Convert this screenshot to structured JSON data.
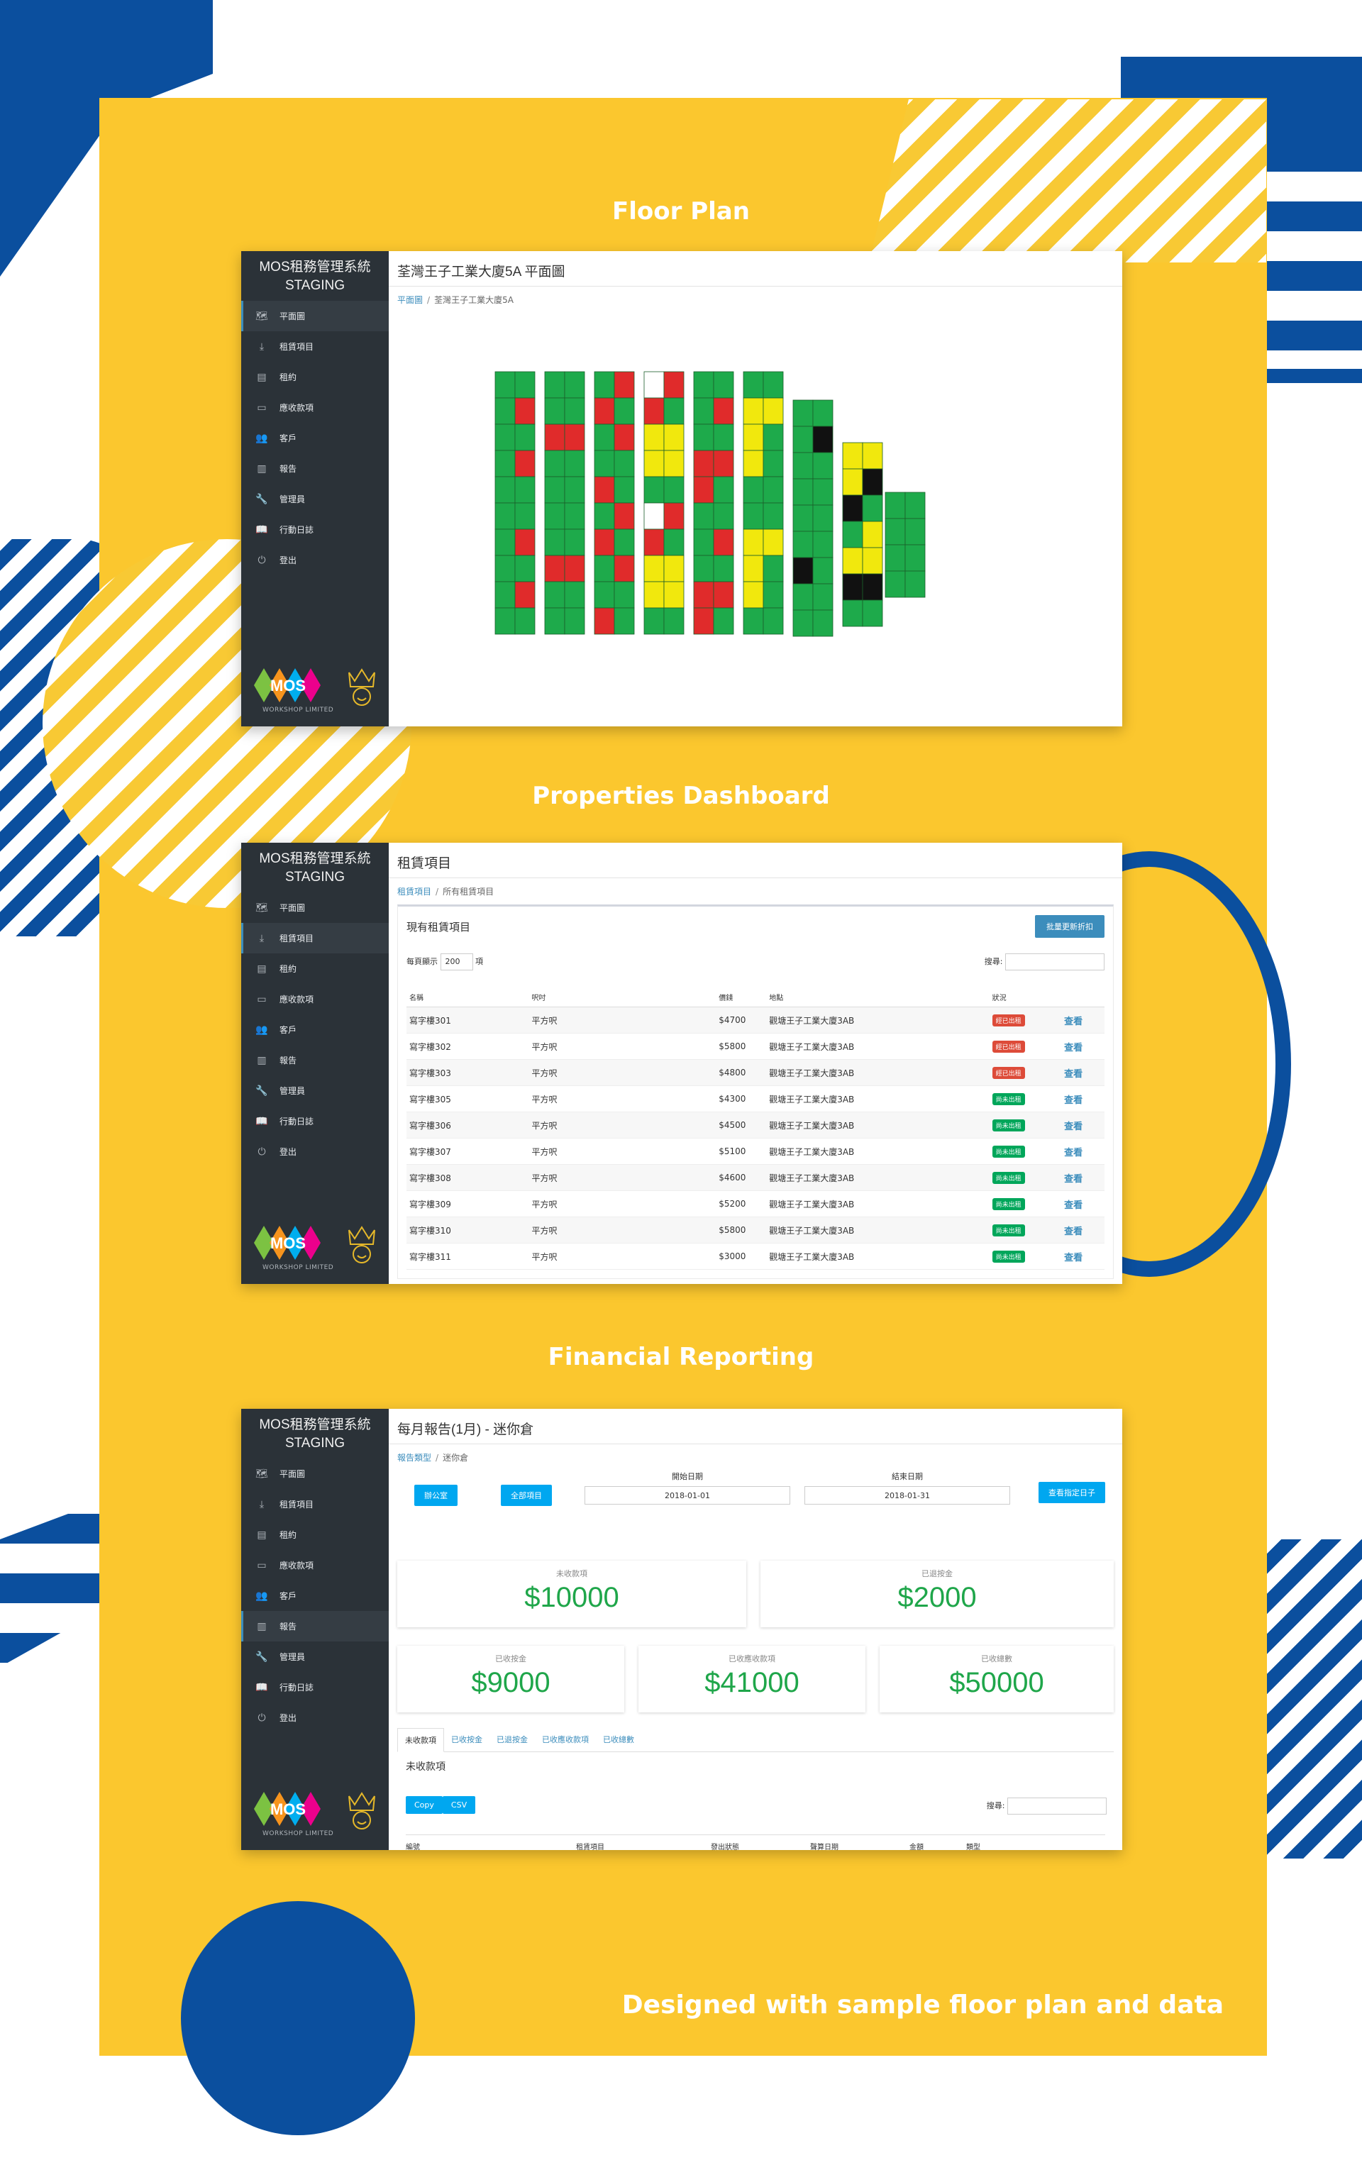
{
  "sections": {
    "floor_plan_title": "Floor Plan",
    "dashboard_title": "Properties Dashboard",
    "financial_title": "Financial Reporting",
    "footer_caption": "Designed with sample floor plan and data"
  },
  "app": {
    "brand_line1": "MOS租務管理系統",
    "brand_line2": "STAGING",
    "nav": [
      {
        "label": "平面圖",
        "icon": "map-icon"
      },
      {
        "label": "租賃項目",
        "icon": "download-icon"
      },
      {
        "label": "租約",
        "icon": "document-icon"
      },
      {
        "label": "應收款項",
        "icon": "money-icon"
      },
      {
        "label": "客戶",
        "icon": "users-icon"
      },
      {
        "label": "報告",
        "icon": "report-icon"
      },
      {
        "label": "管理員",
        "icon": "wrench-icon"
      },
      {
        "label": "行動日誌",
        "icon": "book-icon"
      },
      {
        "label": "登出",
        "icon": "power-icon"
      }
    ],
    "logo_text": "MOS",
    "logo_sub": "WORKSHOP LIMITED",
    "colors": {
      "sidebar": "#2b3238",
      "accent": "#3c8dbc",
      "green": "#1fa64a"
    }
  },
  "floorplan": {
    "header": "荃灣王子工業大廈5A 平面圖",
    "crumb_link": "平面圖",
    "crumb_current": "荃灣王子工業大廈5A",
    "legend_colors": {
      "green": "#1eaa4b",
      "red": "#e02b2b",
      "yellow": "#f1e80d",
      "black": "#111111",
      "white": "#ffffff"
    }
  },
  "dashboard": {
    "header": "租賃項目",
    "crumb_link": "租賃項目",
    "crumb_current": "所有租賃項目",
    "box_title": "現有租賃項目",
    "bulk_button": "批量更新折扣",
    "page_size_label": "每頁顯示",
    "page_size_value": "200",
    "page_size_suffix": "項",
    "search_label": "搜尋:",
    "columns": [
      "名稱",
      "呎吋",
      "價錢",
      "地點",
      "狀況",
      ""
    ],
    "rows": [
      {
        "name": "寫字樓301",
        "size": "平方呎",
        "price": "$4700",
        "loc": "觀塘王子工業大廈3AB",
        "status": "經已出租",
        "tone": "red",
        "action": "查看"
      },
      {
        "name": "寫字樓302",
        "size": "平方呎",
        "price": "$5800",
        "loc": "觀塘王子工業大廈3AB",
        "status": "經已出租",
        "tone": "red",
        "action": "查看"
      },
      {
        "name": "寫字樓303",
        "size": "平方呎",
        "price": "$4800",
        "loc": "觀塘王子工業大廈3AB",
        "status": "經已出租",
        "tone": "red",
        "action": "查看"
      },
      {
        "name": "寫字樓305",
        "size": "平方呎",
        "price": "$4300",
        "loc": "觀塘王子工業大廈3AB",
        "status": "尚未出租",
        "tone": "green",
        "action": "查看"
      },
      {
        "name": "寫字樓306",
        "size": "平方呎",
        "price": "$4500",
        "loc": "觀塘王子工業大廈3AB",
        "status": "尚未出租",
        "tone": "green",
        "action": "查看"
      },
      {
        "name": "寫字樓307",
        "size": "平方呎",
        "price": "$5100",
        "loc": "觀塘王子工業大廈3AB",
        "status": "尚未出租",
        "tone": "green",
        "action": "查看"
      },
      {
        "name": "寫字樓308",
        "size": "平方呎",
        "price": "$4600",
        "loc": "觀塘王子工業大廈3AB",
        "status": "尚未出租",
        "tone": "green",
        "action": "查看"
      },
      {
        "name": "寫字樓309",
        "size": "平方呎",
        "price": "$5200",
        "loc": "觀塘王子工業大廈3AB",
        "status": "尚未出租",
        "tone": "green",
        "action": "查看"
      },
      {
        "name": "寫字樓310",
        "size": "平方呎",
        "price": "$5800",
        "loc": "觀塘王子工業大廈3AB",
        "status": "尚未出租",
        "tone": "green",
        "action": "查看"
      },
      {
        "name": "寫字樓311",
        "size": "平方呎",
        "price": "$3000",
        "loc": "觀塘王子工業大廈3AB",
        "status": "尚未出租",
        "tone": "green",
        "action": "查看"
      }
    ]
  },
  "financial": {
    "header": "每月報告(1月) - 迷你倉",
    "crumb_link": "報告類型",
    "crumb_current": "迷你倉",
    "btn_office": "辦公室",
    "btn_all": "全部項目",
    "start_label": "開始日期",
    "start_value": "2018-01-01",
    "end_label": "結束日期",
    "end_value": "2018-01-31",
    "btn_query": "查看指定日子",
    "stats": [
      {
        "label": "未收款項",
        "value": "$10000"
      },
      {
        "label": "已退按金",
        "value": "$2000"
      },
      {
        "label": "已收按金",
        "value": "$9000"
      },
      {
        "label": "已收應收款項",
        "value": "$41000"
      },
      {
        "label": "已收總數",
        "value": "$50000"
      }
    ],
    "tabs": [
      "未收款項",
      "已收按金",
      "已退按金",
      "已收應收款項",
      "已收總數"
    ],
    "panel_title": "未收款項",
    "btn_copy": "Copy",
    "btn_csv": "CSV",
    "search_label": "搜尋:",
    "columns": [
      "編號",
      "租賃項目",
      "發出狀態",
      "聲算日期",
      "金額",
      "類型"
    ]
  }
}
